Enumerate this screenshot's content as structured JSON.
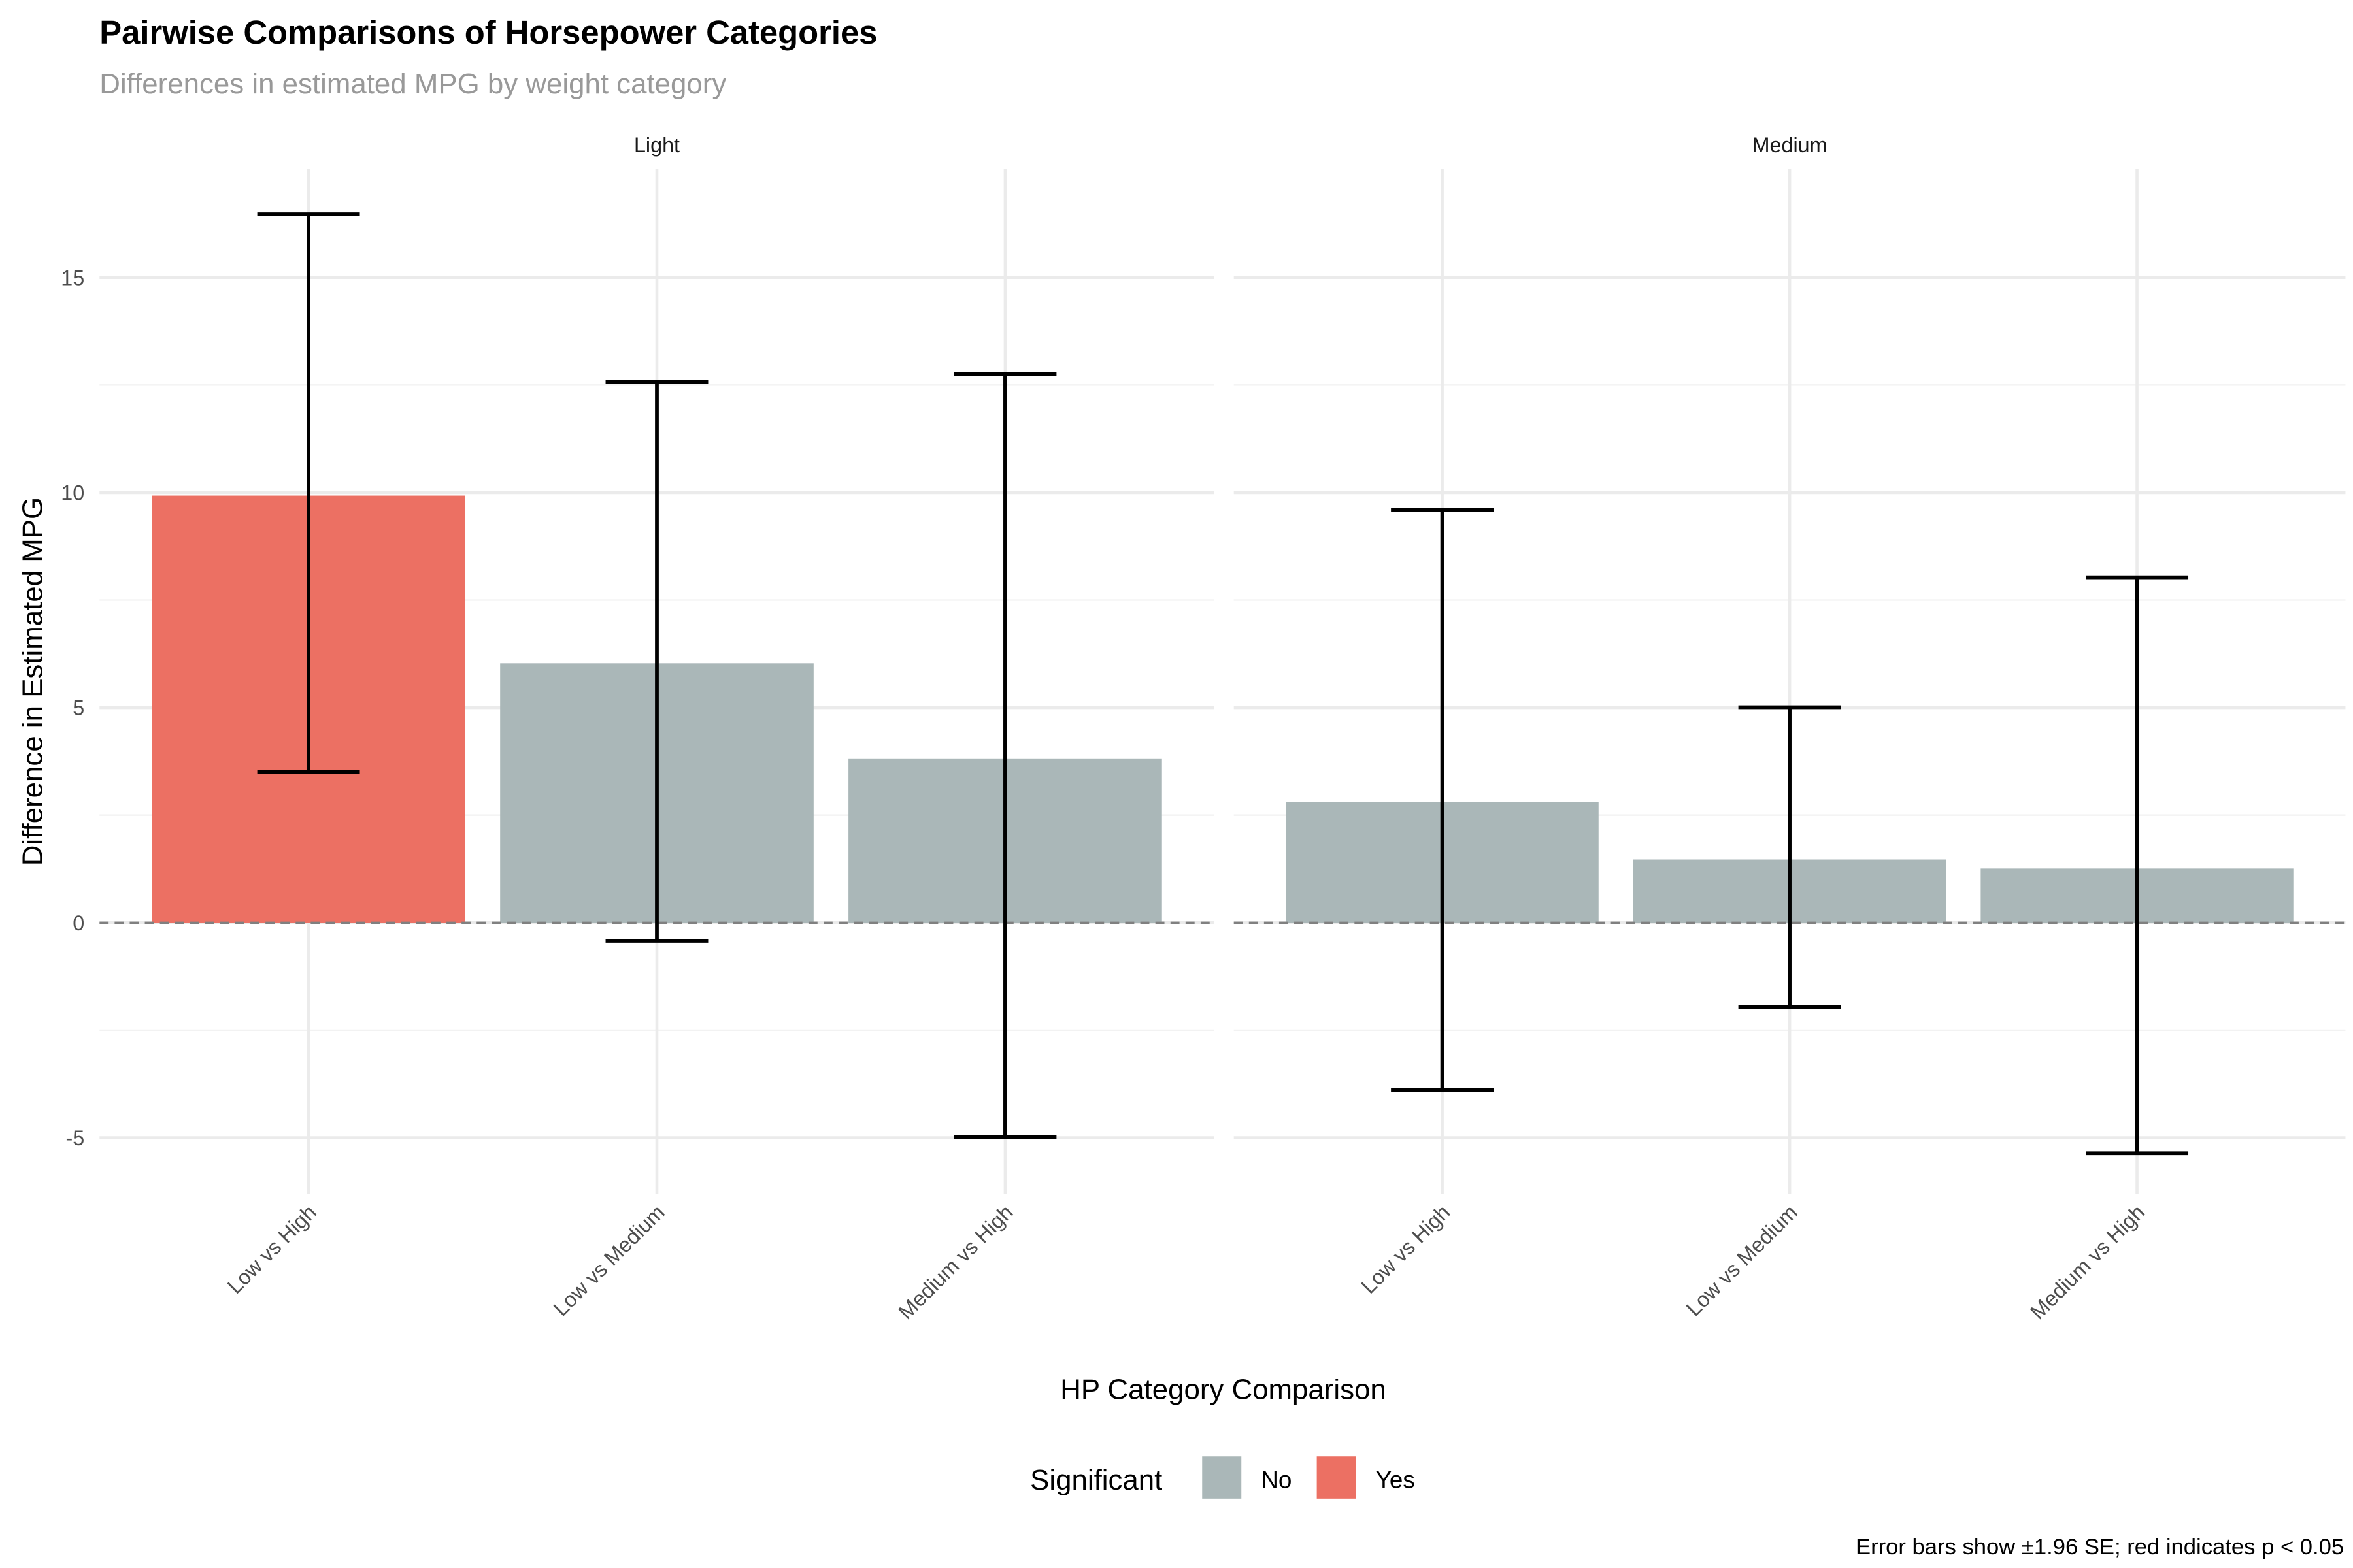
{
  "chart_data": {
    "type": "bar",
    "title": "Pairwise Comparisons of Horsepower Categories",
    "subtitle": "Differences in estimated MPG by weight category",
    "xlabel": "HP Category Comparison",
    "ylabel": "Difference in Estimated MPG",
    "caption": "Error bars show ±1.96 SE; red indicates p < 0.05",
    "ylim": [
      -6,
      17.5
    ],
    "yticks": [
      -5,
      0,
      5,
      10,
      15
    ],
    "yticklabels": [
      "-5",
      "0",
      "5",
      "10",
      "15"
    ],
    "grid": true,
    "reference_line": 0,
    "legend": {
      "title": "Significant",
      "position": "bottom",
      "entries": [
        {
          "label": "No",
          "color": "#AAB7B8"
        },
        {
          "label": "Yes",
          "color": "#EC7063"
        }
      ]
    },
    "categories": [
      "Low vs High",
      "Low vs Medium",
      "Medium vs High"
    ],
    "facets": [
      {
        "name": "Light",
        "bars": [
          {
            "category": "Low vs High",
            "value": 9.93,
            "lower": 3.5,
            "upper": 16.47,
            "significant": "Yes"
          },
          {
            "category": "Low vs Medium",
            "value": 6.03,
            "lower": -0.42,
            "upper": 12.58,
            "significant": "No"
          },
          {
            "category": "Medium vs High",
            "value": 3.82,
            "lower": -4.98,
            "upper": 12.76,
            "significant": "No"
          }
        ]
      },
      {
        "name": "Medium",
        "bars": [
          {
            "category": "Low vs High",
            "value": 2.8,
            "lower": -3.89,
            "upper": 9.6,
            "significant": "No"
          },
          {
            "category": "Low vs Medium",
            "value": 1.47,
            "lower": -1.96,
            "upper": 5.01,
            "significant": "No"
          },
          {
            "category": "Medium vs High",
            "value": 1.26,
            "lower": -5.36,
            "upper": 8.03,
            "significant": "No"
          }
        ]
      }
    ]
  }
}
